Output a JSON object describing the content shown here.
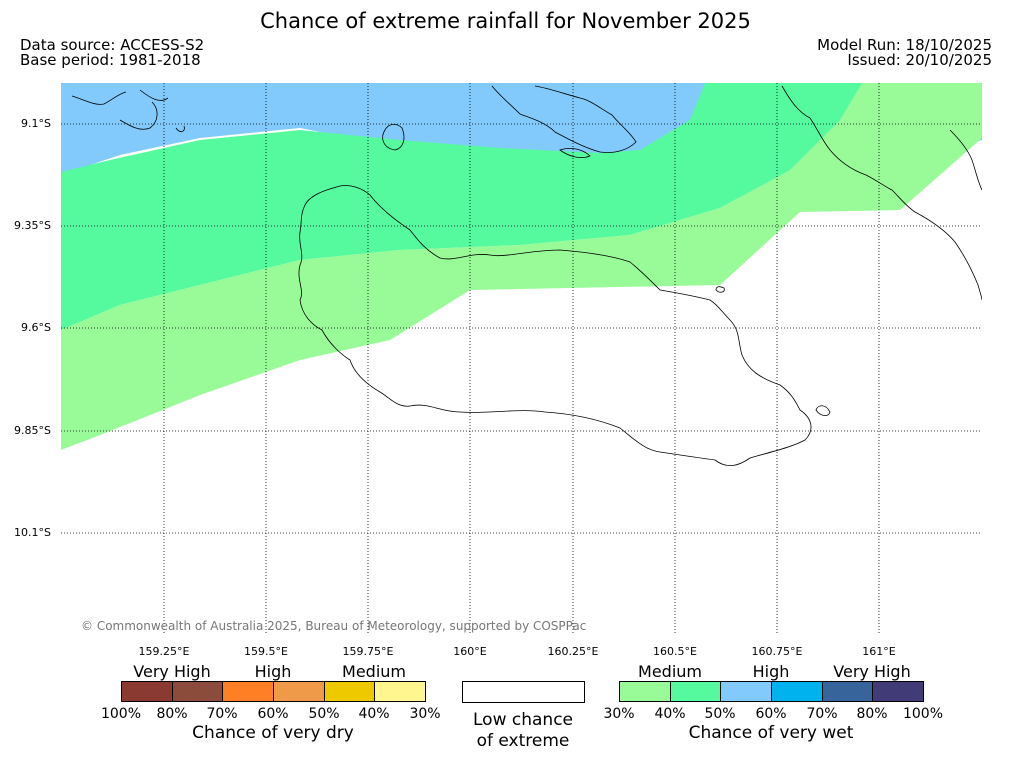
{
  "title": "Chance of extreme rainfall for November 2025",
  "meta": {
    "data_source": "Data source: ACCESS-S2",
    "base_period": "Base period: 1981-2018",
    "model_run": "Model Run: 18/10/2025",
    "issued": "Issued: 20/10/2025"
  },
  "map": {
    "lat_labels": [
      "9.1°S",
      "9.35°S",
      "9.6°S",
      "9.85°S",
      "10.1°S"
    ],
    "lon_labels": [
      "159.25°E",
      "159.5°E",
      "159.75°E",
      "160°E",
      "160.25°E",
      "160.5°E",
      "160.75°E",
      "161°E"
    ],
    "copyright": "© Commonwealth of Australia 2025, Bureau of Meteorology, supported by COSPPac",
    "zones": {
      "medium_wet_color": "#98fb98",
      "medium_wet_high_color": "#55fa9f",
      "high_wet_color": "#82cafc"
    }
  },
  "legend": {
    "dry": {
      "categories": [
        "Very High",
        "High",
        "Medium"
      ],
      "colors": [
        "#8b3a32",
        "#8b4c3c",
        "#ff7f24",
        "#ee9a49",
        "#eec900",
        "#fff68f"
      ],
      "ticks": [
        "100%",
        "80%",
        "70%",
        "60%",
        "50%",
        "40%",
        "30%"
      ],
      "caption": "Chance of very dry"
    },
    "low": {
      "line1": "Low chance",
      "line2": "of extreme"
    },
    "wet": {
      "categories": [
        "Medium",
        "High",
        "Very High"
      ],
      "colors": [
        "#98fb98",
        "#55fa9f",
        "#82cafc",
        "#00b2ee",
        "#36649b",
        "#413c78"
      ],
      "ticks": [
        "30%",
        "40%",
        "50%",
        "60%",
        "70%",
        "80%",
        "100%"
      ],
      "caption": "Chance of very wet"
    }
  }
}
